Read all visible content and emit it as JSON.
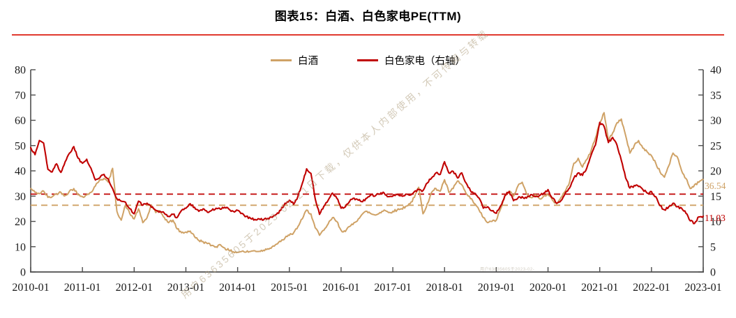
{
  "title": "图表15：白酒、白色家电PE(TTM)",
  "title_rule_color": "#E0392F",
  "legend": {
    "items": [
      {
        "label": "白酒",
        "color": "#CFA266"
      },
      {
        "label": "白色家电（右轴）",
        "color": "#C00000"
      }
    ]
  },
  "watermark": {
    "diagonal_text": "用户63635605于2023-02-21日下载，仅供本人内部使用，不可传阅与转载",
    "small_text": "用户63635605于2023-02-21日下载，仅供本人内部使用，不可传阅与转载"
  },
  "end_labels": {
    "baijiu": "36.54",
    "jiadian": "11.03"
  },
  "chart_data": {
    "type": "line",
    "title": "图表15：白酒、白色家电PE(TTM)",
    "frequency": "monthly",
    "x_start": "2010-01",
    "x_end": "2023-01",
    "x_tick_labels": [
      "2010-01",
      "2011-01",
      "2012-01",
      "2013-01",
      "2014-01",
      "2015-01",
      "2016-01",
      "2017-01",
      "2018-01",
      "2019-01",
      "2020-01",
      "2021-01",
      "2022-01",
      "2023-01"
    ],
    "left_axis": {
      "min": 0,
      "max": 80,
      "step": 10,
      "ticks": [
        0,
        10,
        20,
        30,
        40,
        50,
        60,
        70,
        80
      ]
    },
    "right_axis": {
      "min": 0,
      "max": 40,
      "step": 5,
      "ticks": [
        0,
        5,
        10,
        15,
        20,
        25,
        30,
        35,
        40
      ]
    },
    "grid": false,
    "legend_position": "top-center",
    "axis_color": "#4d4d4d",
    "tick_label_color": "#1a1a1a",
    "series": [
      {
        "name": "白酒",
        "axis": "left",
        "color": "#CFA266",
        "last_value": 36.54,
        "monthly_values": [
          33.0,
          31.5,
          31.0,
          32.0,
          29.5,
          29.8,
          31.0,
          31.5,
          30.2,
          32.0,
          33.0,
          30.5,
          29.8,
          30.5,
          31.5,
          34.0,
          36.5,
          37.0,
          35.5,
          41.0,
          24.0,
          20.5,
          26.5,
          23.0,
          21.0,
          25.0,
          19.5,
          21.5,
          26.5,
          23.5,
          24.0,
          21.5,
          19.5,
          20.5,
          17.0,
          15.5,
          15.8,
          16.2,
          14.0,
          12.5,
          12.0,
          11.2,
          10.5,
          10.0,
          10.8,
          9.5,
          8.5,
          8.0,
          7.8,
          8.2,
          7.9,
          8.1,
          8.4,
          8.2,
          8.6,
          9.2,
          10.0,
          11.0,
          12.0,
          13.5,
          14.5,
          15.5,
          18.0,
          21.0,
          24.5,
          23.0,
          17.5,
          14.5,
          16.5,
          19.0,
          21.5,
          20.0,
          16.5,
          16.0,
          18.0,
          19.5,
          21.0,
          23.0,
          24.0,
          23.0,
          22.5,
          23.5,
          24.5,
          23.5,
          24.0,
          24.5,
          25.0,
          26.0,
          27.0,
          29.5,
          33.5,
          23.0,
          27.0,
          31.5,
          33.0,
          32.0,
          36.5,
          31.5,
          33.0,
          36.0,
          34.5,
          31.0,
          29.0,
          27.0,
          24.5,
          21.5,
          19.5,
          20.0,
          20.5,
          25.0,
          30.0,
          32.0,
          30.0,
          34.0,
          35.5,
          31.0,
          29.5,
          30.5,
          29.0,
          30.0,
          30.5,
          28.5,
          27.0,
          29.5,
          32.0,
          35.5,
          43.0,
          45.0,
          41.5,
          44.5,
          48.0,
          53.0,
          59.0,
          63.0,
          52.0,
          55.0,
          59.0,
          60.5,
          54.0,
          47.0,
          50.0,
          52.0,
          49.0,
          47.5,
          46.0,
          43.0,
          39.5,
          37.5,
          42.0,
          47.0,
          45.5,
          40.0,
          37.0,
          33.0,
          34.5,
          35.5,
          36.54
        ]
      },
      {
        "name": "白色家电",
        "axis": "right",
        "color": "#C00000",
        "last_value": 11.03,
        "monthly_values": [
          24.6,
          23.2,
          26.0,
          25.5,
          20.3,
          19.8,
          21.4,
          19.7,
          21.8,
          23.5,
          24.8,
          22.5,
          21.5,
          22.3,
          20.5,
          18.2,
          18.6,
          19.3,
          18.4,
          16.5,
          14.5,
          14.0,
          13.8,
          12.5,
          11.5,
          14.0,
          13.2,
          13.6,
          12.8,
          12.2,
          12.0,
          11.6,
          11.0,
          11.4,
          10.8,
          12.2,
          12.6,
          13.5,
          12.8,
          12.0,
          12.5,
          11.8,
          12.2,
          12.6,
          12.4,
          12.8,
          12.4,
          12.0,
          12.2,
          11.6,
          11.0,
          10.6,
          10.4,
          10.5,
          10.3,
          10.6,
          10.8,
          11.4,
          12.2,
          13.6,
          14.2,
          13.4,
          15.0,
          17.5,
          20.4,
          19.5,
          14.5,
          11.4,
          13.0,
          14.2,
          15.6,
          14.6,
          12.6,
          12.9,
          14.0,
          14.6,
          14.2,
          13.9,
          14.6,
          15.3,
          15.1,
          15.4,
          15.6,
          14.9,
          15.0,
          15.3,
          15.1,
          15.4,
          15.2,
          15.9,
          16.3,
          16.1,
          17.6,
          18.6,
          19.6,
          19.3,
          21.8,
          19.6,
          19.9,
          18.6,
          19.6,
          17.6,
          16.1,
          15.6,
          14.6,
          12.6,
          12.9,
          12.1,
          11.6,
          13.1,
          15.1,
          15.9,
          14.1,
          14.6,
          14.9,
          14.6,
          15.3,
          14.9,
          15.1,
          15.6,
          16.3,
          14.6,
          13.6,
          14.1,
          15.6,
          16.6,
          18.6,
          19.6,
          19.1,
          20.6,
          23.1,
          25.1,
          29.6,
          28.8,
          25.6,
          26.6,
          25.1,
          22.1,
          18.6,
          16.6,
          17.1,
          16.9,
          16.3,
          15.6,
          15.9,
          14.9,
          13.1,
          12.3,
          12.9,
          13.6,
          12.9,
          12.6,
          11.6,
          10.1,
          9.6,
          10.9,
          11.03
        ]
      }
    ],
    "reference_lines": [
      {
        "series": "白酒",
        "axis": "left",
        "value": 26.4,
        "style": "dashed",
        "color": "#CFA266"
      },
      {
        "series": "白色家电",
        "axis": "right",
        "value": 15.4,
        "style": "dashed",
        "color": "#C00000"
      }
    ],
    "end_value_labels": [
      {
        "series": "白酒",
        "text": "36.54",
        "color": "#CFA266"
      },
      {
        "series": "白色家电",
        "text": "11.03",
        "color": "#C00000"
      }
    ]
  }
}
